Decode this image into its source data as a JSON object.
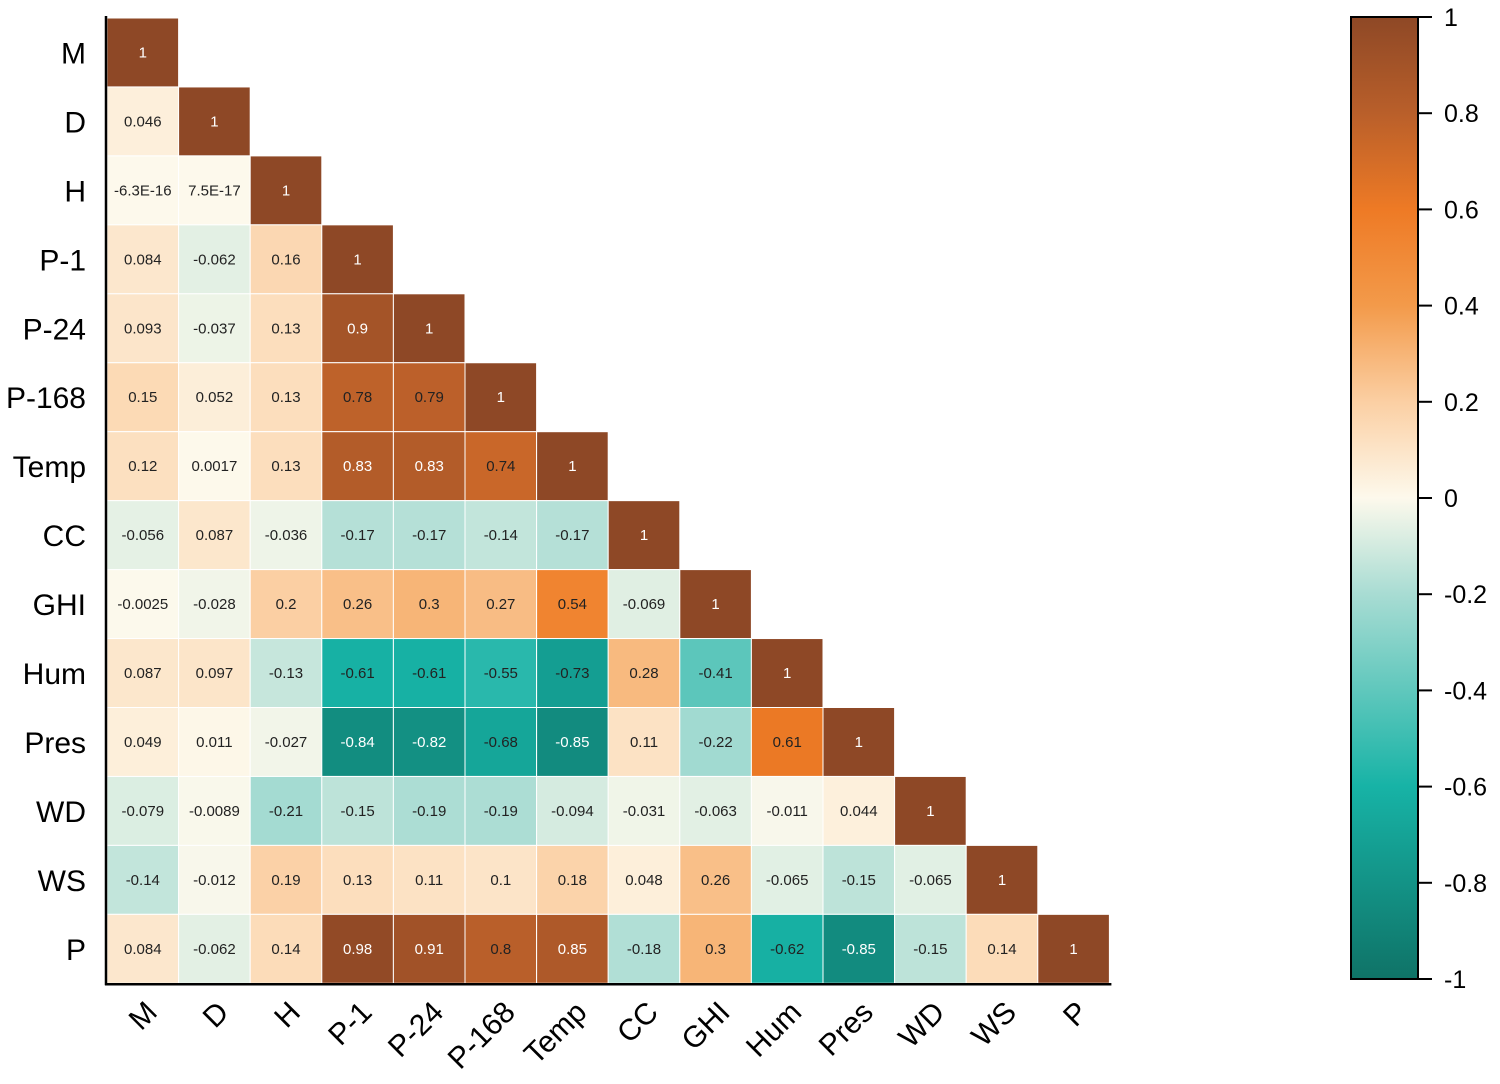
{
  "chart_data": {
    "type": "heatmap",
    "title": "",
    "variables": [
      "M",
      "D",
      "H",
      "P-1",
      "P-24",
      "P-168",
      "Temp",
      "CC",
      "GHI",
      "Hum",
      "Pres",
      "WD",
      "WS",
      "P"
    ],
    "lower_triangle_values": [
      [
        1
      ],
      [
        0.046,
        1
      ],
      [
        -6.3e-16,
        7.5e-17,
        1
      ],
      [
        0.084,
        -0.062,
        0.16,
        1
      ],
      [
        0.093,
        -0.037,
        0.13,
        0.9,
        1
      ],
      [
        0.15,
        0.052,
        0.13,
        0.78,
        0.79,
        1
      ],
      [
        0.12,
        0.0017,
        0.13,
        0.83,
        0.83,
        0.74,
        1
      ],
      [
        -0.056,
        0.087,
        -0.036,
        -0.17,
        -0.17,
        -0.14,
        -0.17,
        1
      ],
      [
        -0.0025,
        -0.028,
        0.2,
        0.26,
        0.3,
        0.27,
        0.54,
        -0.069,
        1
      ],
      [
        0.087,
        0.097,
        -0.13,
        -0.61,
        -0.61,
        -0.55,
        -0.73,
        0.28,
        -0.41,
        1
      ],
      [
        0.049,
        0.011,
        -0.027,
        -0.84,
        -0.82,
        -0.68,
        -0.85,
        0.11,
        -0.22,
        0.61,
        1
      ],
      [
        -0.079,
        -0.0089,
        -0.21,
        -0.15,
        -0.19,
        -0.19,
        -0.094,
        -0.031,
        -0.063,
        -0.011,
        0.044,
        1
      ],
      [
        -0.14,
        -0.012,
        0.19,
        0.13,
        0.11,
        0.1,
        0.18,
        0.048,
        0.26,
        -0.065,
        -0.15,
        -0.065,
        1
      ],
      [
        0.084,
        -0.062,
        0.14,
        0.98,
        0.91,
        0.8,
        0.85,
        -0.18,
        0.3,
        -0.62,
        -0.85,
        -0.15,
        0.14,
        1
      ]
    ],
    "cell_labels": [
      [
        "1"
      ],
      [
        "0.046",
        "1"
      ],
      [
        "-6.3E-16",
        "7.5E-17",
        "1"
      ],
      [
        "0.084",
        "-0.062",
        "0.16",
        "1"
      ],
      [
        "0.093",
        "-0.037",
        "0.13",
        "0.9",
        "1"
      ],
      [
        "0.15",
        "0.052",
        "0.13",
        "0.78",
        "0.79",
        "1"
      ],
      [
        "0.12",
        "0.0017",
        "0.13",
        "0.83",
        "0.83",
        "0.74",
        "1"
      ],
      [
        "-0.056",
        "0.087",
        "-0.036",
        "-0.17",
        "-0.17",
        "-0.14",
        "-0.17",
        "1"
      ],
      [
        "-0.0025",
        "-0.028",
        "0.2",
        "0.26",
        "0.3",
        "0.27",
        "0.54",
        "-0.069",
        "1"
      ],
      [
        "0.087",
        "0.097",
        "-0.13",
        "-0.61",
        "-0.61",
        "-0.55",
        "-0.73",
        "0.28",
        "-0.41",
        "1"
      ],
      [
        "0.049",
        "0.011",
        "-0.027",
        "-0.84",
        "-0.82",
        "-0.68",
        "-0.85",
        "0.11",
        "-0.22",
        "0.61",
        "1"
      ],
      [
        "-0.079",
        "-0.0089",
        "-0.21",
        "-0.15",
        "-0.19",
        "-0.19",
        "-0.094",
        "-0.031",
        "-0.063",
        "-0.011",
        "0.044",
        "1"
      ],
      [
        "-0.14",
        "-0.012",
        "0.19",
        "0.13",
        "0.11",
        "0.1",
        "0.18",
        "0.048",
        "0.26",
        "-0.065",
        "-0.15",
        "-0.065",
        "1"
      ],
      [
        "0.084",
        "-0.062",
        "0.14",
        "0.98",
        "0.91",
        "0.8",
        "0.85",
        "-0.18",
        "0.3",
        "-0.62",
        "-0.85",
        "-0.15",
        "0.14",
        "1"
      ]
    ],
    "colorbar": {
      "range": [
        -1,
        1
      ],
      "ticks": [
        1,
        0.8,
        0.6,
        0.4,
        0.2,
        0,
        -0.2,
        -0.4,
        -0.6,
        -0.8,
        -1
      ],
      "tick_labels": [
        "1",
        "0.8",
        "0.6",
        "0.4",
        "0.2",
        "0",
        "-0.2",
        "-0.4",
        "-0.6",
        "-0.8",
        "-1"
      ],
      "color_stops": [
        {
          "value": -1,
          "color": "#0f7367"
        },
        {
          "value": -0.6,
          "color": "#17b3a6"
        },
        {
          "value": -0.2,
          "color": "#a8dcd3"
        },
        {
          "value": 0,
          "color": "#fdf9ec"
        },
        {
          "value": 0.2,
          "color": "#fbcfa3"
        },
        {
          "value": 0.4,
          "color": "#f39a4a"
        },
        {
          "value": 0.6,
          "color": "#ee7a25"
        },
        {
          "value": 0.8,
          "color": "#b95f2a"
        },
        {
          "value": 1,
          "color": "#8e4826"
        }
      ]
    },
    "grid": false,
    "legend": "colorbar-right"
  }
}
